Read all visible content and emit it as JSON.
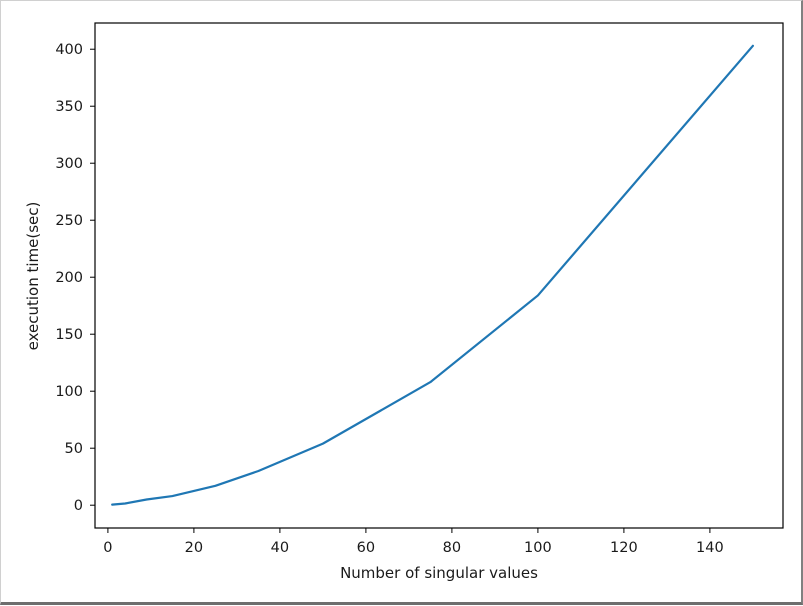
{
  "chart_data": {
    "type": "line",
    "title": "",
    "xlabel": "Number of singular values",
    "ylabel": "execution time(sec)",
    "xlim": [
      -3,
      157
    ],
    "ylim": [
      -20,
      423
    ],
    "xticks": [
      0,
      20,
      40,
      60,
      80,
      100,
      120,
      140
    ],
    "yticks": [
      0,
      50,
      100,
      150,
      200,
      250,
      300,
      350,
      400
    ],
    "grid": false,
    "series": [
      {
        "color": "#1f77b4",
        "x": [
          1,
          4,
          9,
          15,
          25,
          35,
          50,
          75,
          100,
          150
        ],
        "y": [
          0.5,
          1.5,
          5,
          8,
          17,
          30,
          54,
          108,
          184,
          403
        ]
      }
    ]
  }
}
